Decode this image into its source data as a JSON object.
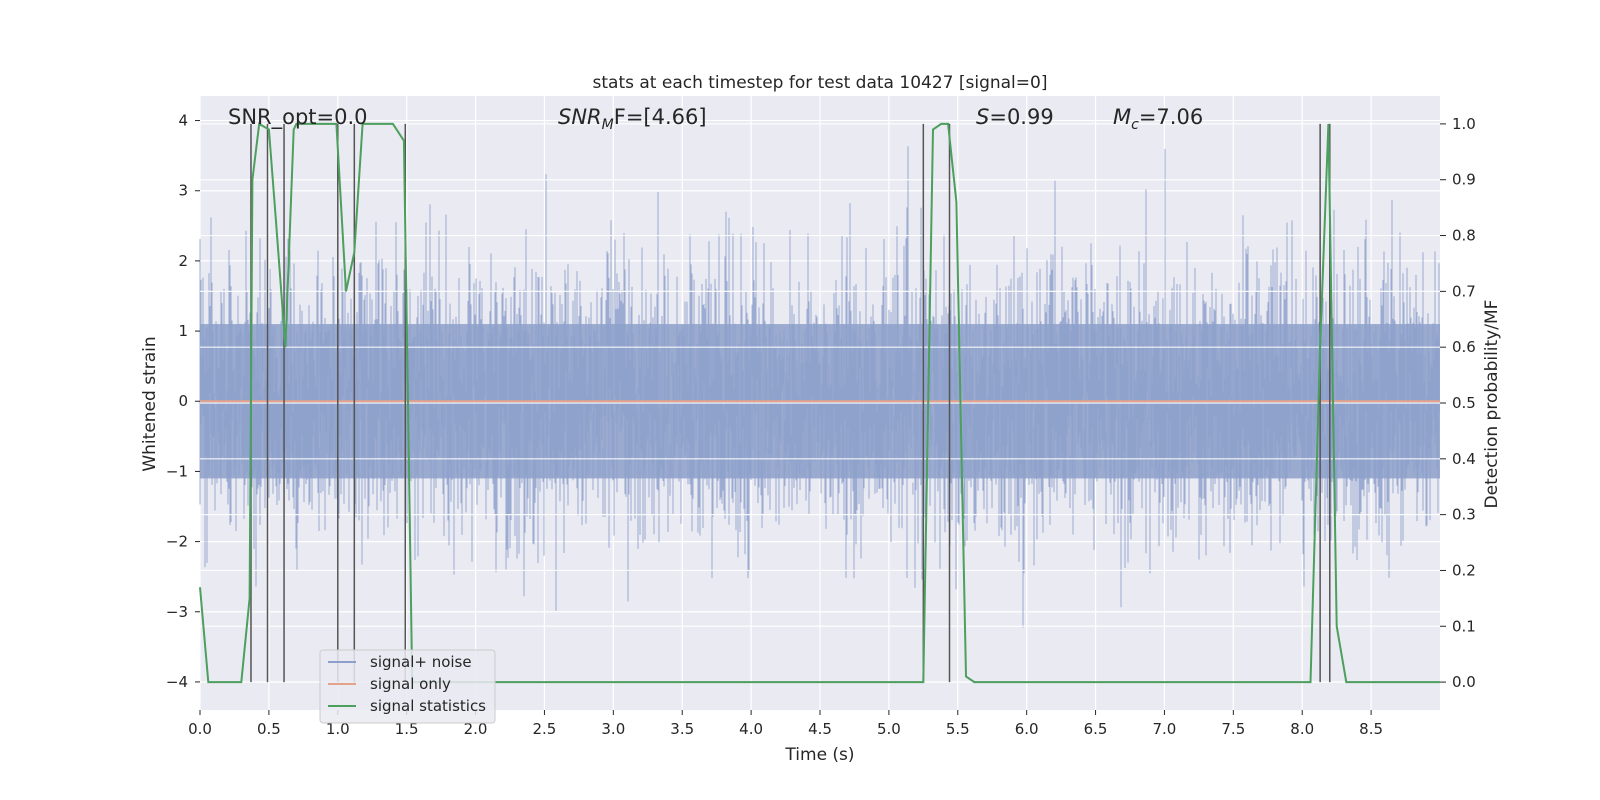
{
  "chart_data": {
    "type": "line",
    "title": "stats at each timestep for test data 10427 [signal=0]",
    "xlabel": "Time (s)",
    "ylabel_left": "Whitened strain",
    "ylabel_right": "Detection probability/MF",
    "xlim": [
      0,
      9.0
    ],
    "ylim_left": [
      -4.4,
      4.35
    ],
    "ylim_right": [
      -0.05,
      1.05
    ],
    "x_ticks": [
      "0.0",
      "0.5",
      "1.0",
      "1.5",
      "2.0",
      "2.5",
      "3.0",
      "3.5",
      "4.0",
      "4.5",
      "5.0",
      "5.5",
      "6.0",
      "6.5",
      "7.0",
      "7.5",
      "8.0",
      "8.5"
    ],
    "x_tick_values": [
      0,
      0.5,
      1.0,
      1.5,
      2.0,
      2.5,
      3.0,
      3.5,
      4.0,
      4.5,
      5.0,
      5.5,
      6.0,
      6.5,
      7.0,
      7.5,
      8.0,
      8.5
    ],
    "y_ticks_left": [
      "−4",
      "−3",
      "−2",
      "−1",
      "0",
      "1",
      "2",
      "3",
      "4"
    ],
    "y_tick_values_left": [
      -4,
      -3,
      -2,
      -1,
      0,
      1,
      2,
      3,
      4
    ],
    "y_ticks_right": [
      "0.0",
      "0.1",
      "0.2",
      "0.3",
      "0.4",
      "0.5",
      "0.6",
      "0.7",
      "0.8",
      "0.9",
      "1.0"
    ],
    "y_tick_values_right": [
      0,
      0.1,
      0.2,
      0.3,
      0.4,
      0.5,
      0.6,
      0.7,
      0.8,
      0.9,
      1.0
    ],
    "grid": true,
    "legend_placement": "lower-left",
    "annotations": {
      "snr_opt": "SNR_opt=0.0",
      "snr_mf_main": "SNR",
      "snr_mf_sub": "M",
      "snr_mf_rest": "F=[4.66]",
      "s_main": "S",
      "s_rest": "=0.99",
      "mc_main": "M",
      "mc_sub": "c",
      "mc_rest": "=7.06"
    },
    "series": [
      {
        "name": "signal+ noise",
        "axis": "left",
        "color": "#8da0cb",
        "description_envelope_upper_approx": 2.3,
        "description_envelope_lower_approx": -2.3
      },
      {
        "name": "signal only",
        "axis": "left",
        "color": "#e5a28a",
        "x": [
          0,
          9.0
        ],
        "y": [
          0,
          0
        ]
      },
      {
        "name": "signal statistics",
        "axis": "right",
        "color": "#4c9f5c",
        "x": [
          0,
          0.06,
          0.12,
          0.3,
          0.36,
          0.38,
          0.43,
          0.5,
          0.55,
          0.62,
          0.68,
          0.7,
          0.8,
          0.99,
          1.06,
          1.12,
          1.18,
          1.25,
          1.4,
          1.48,
          1.51,
          1.54,
          1.6,
          1.7,
          2.0,
          3.0,
          4.0,
          5.0,
          5.25,
          5.32,
          5.38,
          5.43,
          5.49,
          5.56,
          5.62,
          6.0,
          7.0,
          8.0,
          8.06,
          8.13,
          8.19,
          8.25,
          8.32,
          8.5,
          9.0
        ],
        "y": [
          0.17,
          0.0,
          0.0,
          0.0,
          0.15,
          0.9,
          1.0,
          0.99,
          0.83,
          0.6,
          0.99,
          1.0,
          1.0,
          1.0,
          0.7,
          0.77,
          1.0,
          1.0,
          1.0,
          0.97,
          0.5,
          0.0,
          0.0,
          0.0,
          0.0,
          0.0,
          0.0,
          0.0,
          0.0,
          0.99,
          1.0,
          1.0,
          0.86,
          0.01,
          0.0,
          0.0,
          0.0,
          0.0,
          0.0,
          0.6,
          1.0,
          0.1,
          0.0,
          0.0,
          0.0
        ]
      }
    ],
    "vertical_markers_x": [
      0.37,
      0.49,
      0.61,
      1.0,
      1.12,
      1.49,
      5.25,
      5.44,
      8.13,
      8.2
    ]
  },
  "legend": {
    "items": [
      {
        "label": "signal+ noise",
        "color": "#8da0cb"
      },
      {
        "label": "signal only",
        "color": "#e5a28a"
      },
      {
        "label": "signal statistics",
        "color": "#4c9f5c"
      }
    ]
  }
}
